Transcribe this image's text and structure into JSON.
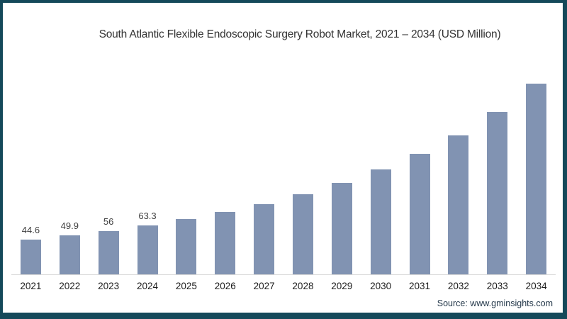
{
  "title": "South Atlantic Flexible Endoscopic Surgery Robot Market, 2021 – 2034 (USD Million)",
  "source": "Source: www.gminsights.com",
  "colors": {
    "frame_border": "#15495a",
    "bar_fill": "#8193b2",
    "axis_line": "#d9d9d9",
    "title_text": "#333333",
    "source_text": "#24384a"
  },
  "chart_data": {
    "type": "bar",
    "title": "South Atlantic Flexible Endoscopic Surgery Robot Market, 2021 – 2034 (USD Million)",
    "categories": [
      "2021",
      "2022",
      "2023",
      "2024",
      "2025",
      "2026",
      "2027",
      "2028",
      "2029",
      "2030",
      "2031",
      "2032",
      "2033",
      "2034"
    ],
    "values": [
      44.6,
      49.9,
      56,
      63.3,
      71,
      80,
      90,
      103,
      117.5,
      134.5,
      155,
      178.5,
      209,
      245
    ],
    "data_labels_visible": [
      "44.6",
      "49.9",
      "56",
      "63.3",
      "",
      "",
      "",
      "",
      "",
      "",
      "",
      "",
      "",
      ""
    ],
    "xlabel": "",
    "ylabel": "",
    "ylim": [
      0,
      260
    ],
    "grid": "off",
    "legend": "none",
    "bar_color": "#8193b2",
    "axis_line_color": "#d9d9d9"
  }
}
